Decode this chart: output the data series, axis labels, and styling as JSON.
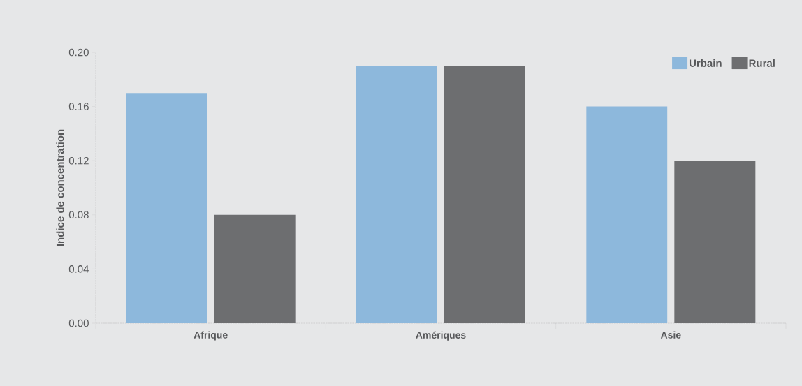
{
  "chart_data": {
    "type": "bar",
    "ylabel": "Indice de concentration",
    "categories": [
      "Afrique",
      "Amériques",
      "Asie"
    ],
    "series": [
      {
        "name": "Urbain",
        "color": "#8db8dc",
        "values": [
          0.17,
          0.19,
          0.16
        ]
      },
      {
        "name": "Rural",
        "color": "#6d6e70",
        "values": [
          0.08,
          0.19,
          0.12
        ]
      }
    ],
    "ylim": [
      0,
      0.2
    ],
    "yticks": [
      {
        "value": 0,
        "label": "0.00"
      },
      {
        "value": 0.04,
        "label": "0.04"
      },
      {
        "value": 0.08,
        "label": "0.08"
      },
      {
        "value": 0.12,
        "label": "0.12"
      },
      {
        "value": 0.16,
        "label": "0.16"
      },
      {
        "value": 0.2,
        "label": "0.20"
      }
    ],
    "legend": "top right"
  }
}
